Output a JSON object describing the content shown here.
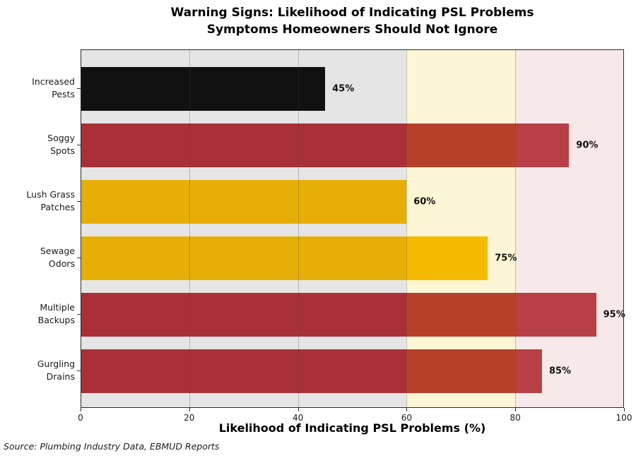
{
  "source": "Source: Plumbing Industry Data, EBMUD Reports",
  "chart_data": {
    "type": "bar",
    "orientation": "horizontal",
    "title": "Warning Signs: Likelihood of Indicating PSL Problems",
    "subtitle": "Symptoms Homeowners Should Not Ignore",
    "xlabel": "Likelihood of Indicating PSL Problems (%)",
    "ylabel": "",
    "xlim": [
      0,
      100
    ],
    "xticks": [
      0,
      20,
      40,
      60,
      80,
      100
    ],
    "xtick_labels": [
      "0",
      "20",
      "40",
      "60",
      "80",
      "100"
    ],
    "grid": "faint vertical lines at inner x ticks, drawn over bars",
    "grid_ticks": [
      20,
      40,
      60,
      80
    ],
    "legend": "none",
    "categories": [
      "Increased Pests",
      "Soggy Spots",
      "Lush Grass Patches",
      "Sewage Odors",
      "Multiple Backups",
      "Gurgling Drains"
    ],
    "category_display": [
      "Increased\nPests",
      "Soggy\nSpots",
      "Lush Grass\nPatches",
      "Sewage\nOdors",
      "Multiple\nBackups",
      "Gurgling\nDrains"
    ],
    "values": [
      45,
      90,
      60,
      75,
      95,
      85
    ],
    "value_labels": [
      "45%",
      "90%",
      "60%",
      "75%",
      "95%",
      "85%"
    ],
    "bar_colors": [
      "#0a0a0a",
      "#ae2c32",
      "#f4b500",
      "#f4b500",
      "#ae2c32",
      "#ae2c32"
    ],
    "background_zones": [
      {
        "from": 0,
        "to": 60,
        "color": "#f0f0f0",
        "overlay": "rgba(100,100,100,0.08)"
      },
      {
        "from": 60,
        "to": 80,
        "color": "#fdfbf2",
        "overlay": "rgba(255,215,0,0.12)"
      },
      {
        "from": 80,
        "to": 100,
        "color": "#f8ecec",
        "overlay": "rgba(248,210,215,0.12)"
      }
    ],
    "colors": {
      "red_bar": "#ae2c32",
      "gold_bar": "#f4b500",
      "black_bar": "#0a0a0a",
      "zone_gray": "#e4e4e4",
      "zone_cream": "#fbf7e0",
      "zone_pink": "#f8e9ea",
      "spine": "#2b2b2b",
      "text": "#000000"
    }
  }
}
